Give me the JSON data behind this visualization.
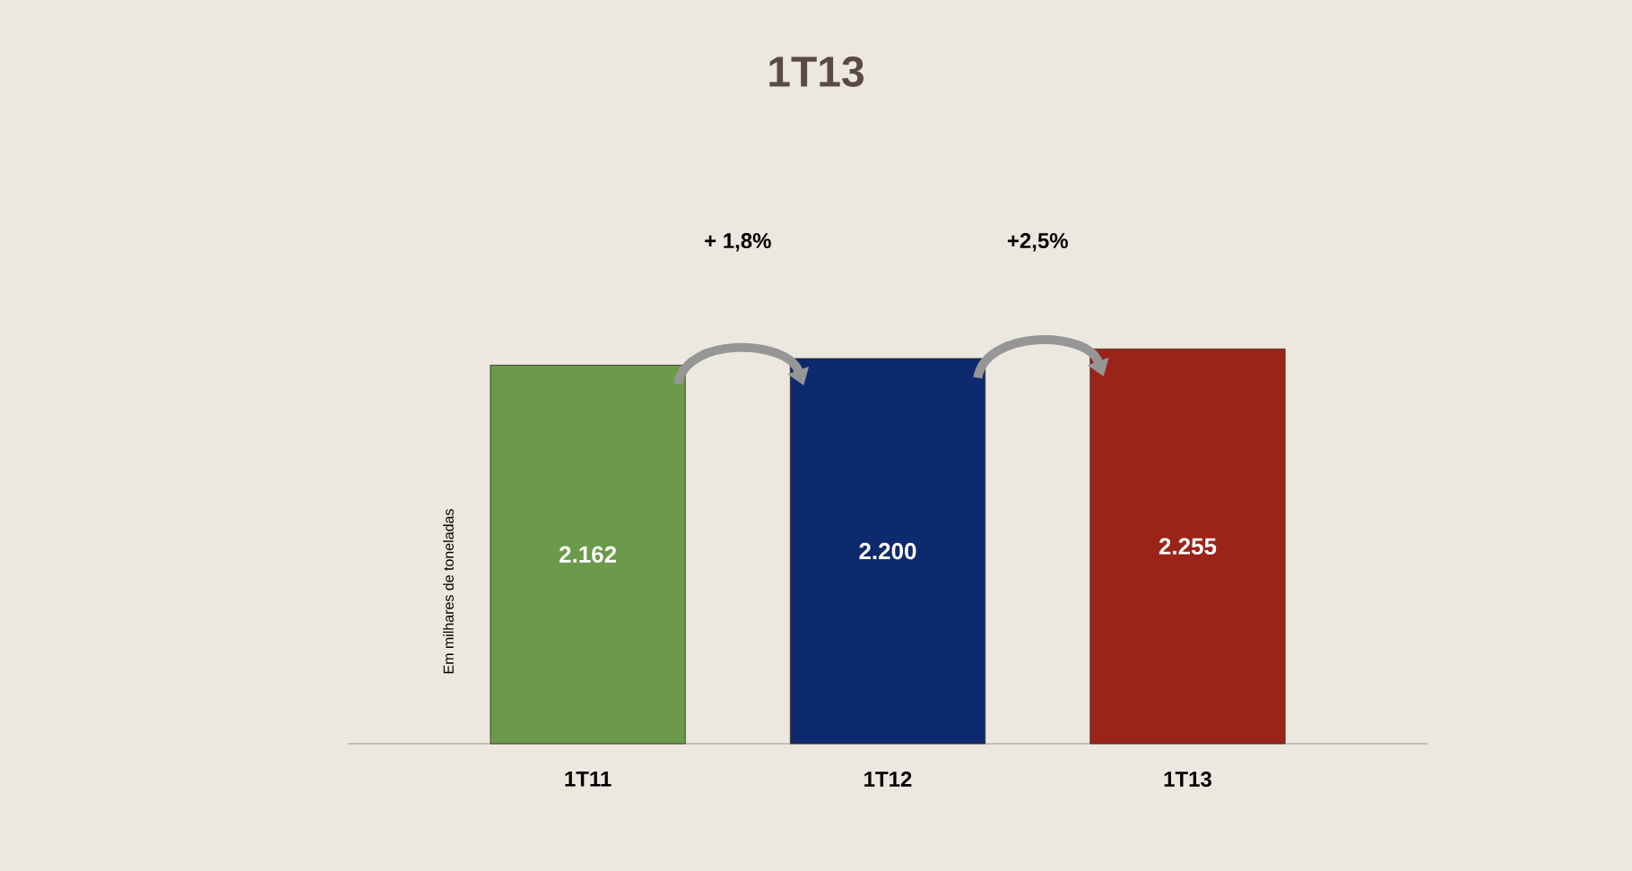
{
  "chart_data": {
    "type": "bar",
    "title": "1T13",
    "ylabel": "Em milhares de toneladas",
    "categories": [
      "1T11",
      "1T12",
      "1T13"
    ],
    "values": [
      2162,
      2200,
      2255
    ],
    "colors": [
      "#6a9a4a",
      "#0e2a6e",
      "#9a2419"
    ],
    "value_labels": [
      "2.162",
      "2.200",
      "2.255"
    ],
    "annotations": [
      "+ 1,8%",
      "+2,5%"
    ]
  }
}
